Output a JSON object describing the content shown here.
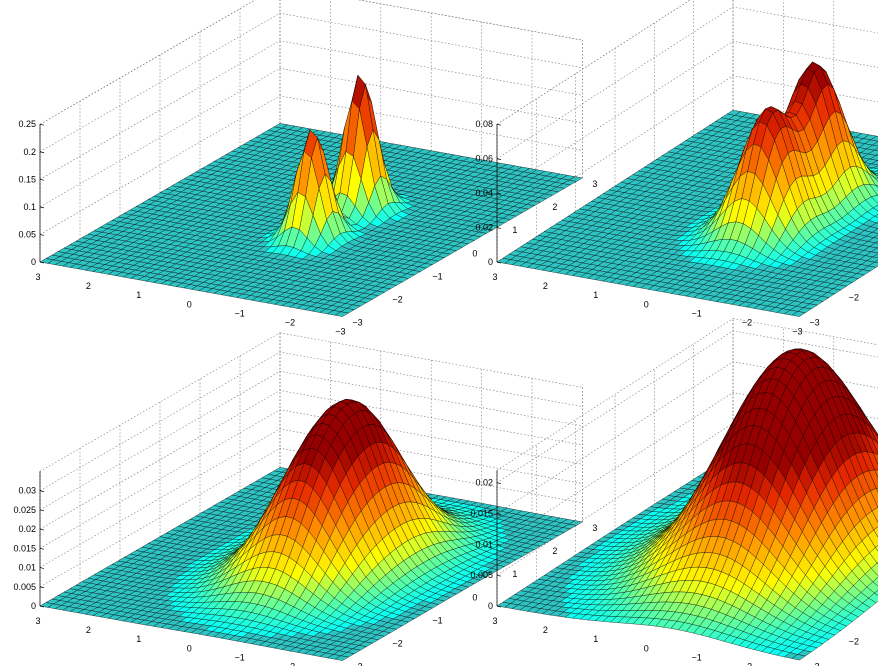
{
  "figure": {
    "layout": "2x2 grid of 3D surface plots",
    "background": "#ffffff"
  },
  "colors": {
    "base": "#2ec4c4",
    "mesh": "#000000",
    "colormap_hot_jet_top": [
      "#00ffff",
      "#ffff00",
      "#ff8000",
      "#e02000",
      "#900000"
    ],
    "grid": "#888888"
  },
  "chart_data": [
    {
      "type": "surface",
      "xlim": [
        -3,
        3
      ],
      "ylim": [
        -3,
        3
      ],
      "zlim": [
        0,
        0.25
      ],
      "x_ticks": [
        "3",
        "2",
        "1",
        "0",
        "−1",
        "−2",
        "−3"
      ],
      "y_ticks": [
        "−3",
        "−2",
        "−1",
        "0",
        "1",
        "2",
        "3"
      ],
      "z_ticks": [
        "0",
        "0.05",
        "0.1",
        "0.15",
        "0.2",
        "0.25"
      ],
      "components": [
        {
          "x": -0.5,
          "y": -0.6,
          "amplitude": 0.2,
          "sigma": 0.25
        },
        {
          "x": -0.5,
          "y": 0.6,
          "amplitude": 0.25,
          "sigma": 0.25
        }
      ],
      "grid": true
    },
    {
      "type": "surface",
      "xlim": [
        -3,
        3
      ],
      "ylim": [
        -3,
        3
      ],
      "zlim": [
        0,
        0.08
      ],
      "x_ticks": [
        "3",
        "2",
        "1",
        "0",
        "−1",
        "−2",
        "−3"
      ],
      "y_ticks": [
        "−3",
        "−2",
        "−1",
        "0",
        "1",
        "2"
      ],
      "z_ticks": [
        "0",
        "0.02",
        "0.04",
        "0.06",
        "0.08"
      ],
      "components": [
        {
          "x": -0.5,
          "y": -0.6,
          "amplitude": 0.07,
          "sigma": 0.45
        },
        {
          "x": -0.5,
          "y": 0.6,
          "amplitude": 0.08,
          "sigma": 0.45
        }
      ],
      "grid": true
    },
    {
      "type": "surface",
      "xlim": [
        -3,
        3
      ],
      "ylim": [
        -3,
        3
      ],
      "zlim": [
        0,
        0.035
      ],
      "x_ticks": [
        "3",
        "2",
        "1",
        "0",
        "−1",
        "−2",
        "−3"
      ],
      "y_ticks": [
        "−3",
        "−2",
        "−1",
        "0",
        "1",
        "2",
        "3"
      ],
      "z_ticks": [
        "0",
        "0.005",
        "0.01",
        "0.015",
        "0.02",
        "0.025",
        "0.03"
      ],
      "components": [
        {
          "x": -0.5,
          "y": -0.6,
          "amplitude": 0.026,
          "sigma": 0.75
        },
        {
          "x": -0.5,
          "y": 0.6,
          "amplitude": 0.032,
          "sigma": 0.75
        }
      ],
      "grid": true
    },
    {
      "type": "surface",
      "xlim": [
        -3,
        3
      ],
      "ylim": [
        -3,
        3
      ],
      "zlim": [
        0,
        0.022
      ],
      "x_ticks": [
        "3",
        "2",
        "1",
        "0",
        "−1",
        "−2",
        "−3"
      ],
      "y_ticks": [
        "−3",
        "−2",
        "−1",
        "0",
        "1",
        "2"
      ],
      "z_ticks": [
        "0",
        "0.005",
        "0.01",
        "0.015",
        "0.02"
      ],
      "components": [
        {
          "x": -0.5,
          "y": -0.6,
          "amplitude": 0.019,
          "sigma": 1.05
        },
        {
          "x": -0.5,
          "y": 0.6,
          "amplitude": 0.021,
          "sigma": 1.05
        }
      ],
      "grid": true
    }
  ]
}
